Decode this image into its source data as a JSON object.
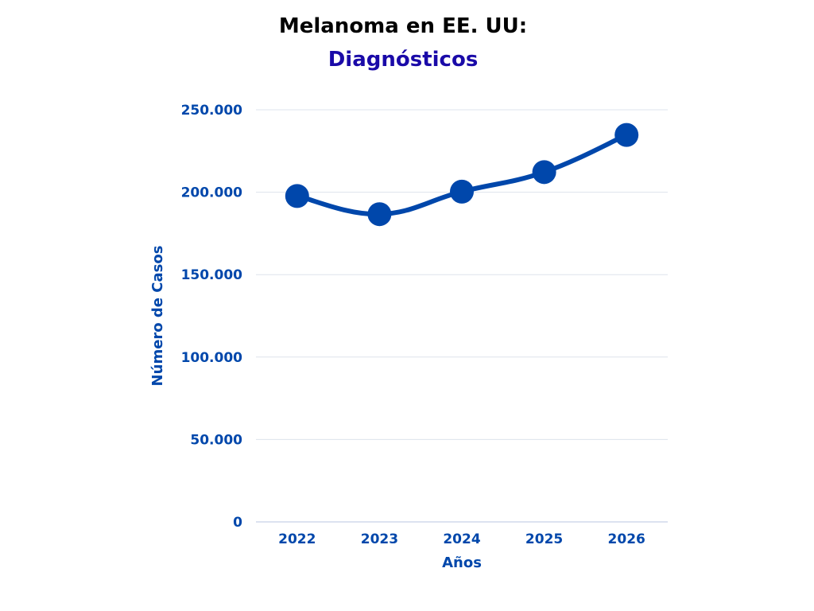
{
  "chart_data": {
    "type": "line",
    "title": "Melanoma en EE. UU:",
    "subtitle": "Diagnósticos",
    "xlabel": "Años",
    "ylabel": "Número de Casos",
    "categories": [
      "2022",
      "2023",
      "2024",
      "2025",
      "2026"
    ],
    "values": [
      197700,
      186680,
      200340,
      212200,
      234720
    ],
    "ylim": [
      0,
      250000
    ],
    "yticks": [
      0,
      50000,
      100000,
      150000,
      200000,
      250000
    ],
    "ytick_labels": [
      "0",
      "50.000",
      "100.000",
      "150.000",
      "200.000",
      "250.000"
    ],
    "grid": true,
    "colors": {
      "line": "#0047ab",
      "subtitle": "#1a0aa8",
      "grid": "#dde3ec"
    }
  }
}
